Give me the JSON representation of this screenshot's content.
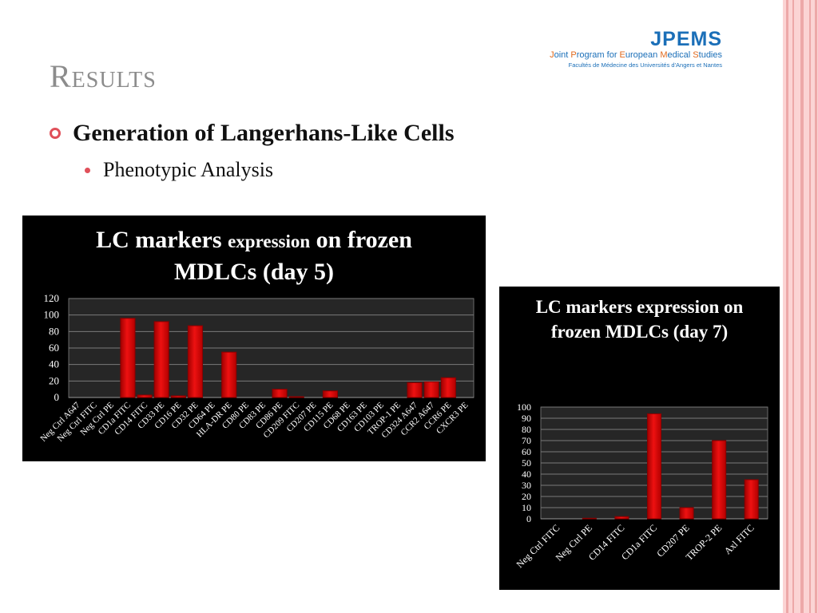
{
  "slide": {
    "title": "Results",
    "bullet1": "Generation of Langerhans-Like Cells",
    "bullet2": "Phenotypic Analysis"
  },
  "logo": {
    "main": "JPEMS",
    "subtitle": "Joint Program for European Medical Studies",
    "subtitle_parts": [
      "J",
      "oint ",
      "P",
      "rogram for ",
      "E",
      "uropean ",
      "M",
      "edical ",
      "S",
      "tudies"
    ],
    "subtitle2": "Facultés de Médecine des Universités d'Angers et Nantes"
  },
  "colors": {
    "bar": "#ee1111",
    "bar_edge": "#8a0000",
    "plot_bg": "#262626",
    "panel_bg": "#000000",
    "title_gray": "#8c8c8c",
    "bullet": "#e0505a",
    "logo_blue": "#1b6fb8",
    "logo_orange": "#e06a1e"
  },
  "chart_data": [
    {
      "type": "bar",
      "title_main": "LC markers ",
      "title_small": "expression",
      "title_rest": " on frozen MDLCs (day 5)",
      "categories": [
        "Neg Ctrl A647",
        "Neg Ctrl FITC",
        "Neg Ctrl PE",
        "CD1a FITC",
        "CD14 FITC",
        "CD33 PE",
        "CD16 PE",
        "CD32 PE",
        "CD64 PE",
        "HLA-DR PE",
        "CD80 PE",
        "CD83 PE",
        "CD86 PE",
        "CD209 FITC",
        "CD207 PE",
        "CD115 PE",
        "CD68 PE",
        "CD163 PE",
        "CD103 PE",
        "TROP-1 PE",
        "CD324 A647",
        "CCR2 A647",
        "CCR6 PE",
        "CXCR3 PE"
      ],
      "values": [
        0,
        0,
        0,
        96,
        3,
        92,
        2,
        87,
        0,
        55,
        0,
        0,
        10,
        1,
        0,
        8,
        0,
        0,
        0,
        0,
        18,
        19,
        24,
        0
      ],
      "ylim": [
        0,
        120
      ],
      "yticks": [
        0,
        20,
        40,
        60,
        80,
        100,
        120
      ],
      "grid": true
    },
    {
      "type": "bar",
      "title": "LC markers expression on frozen MDLCs (day 7)",
      "categories": [
        "Neg Ctrl FITC",
        "Neg Ctrl PE",
        "CD14 FITC",
        "CD1a FITC",
        "CD207 PE",
        "TROP-2 PE",
        "Axl FITC"
      ],
      "values": [
        0,
        0.5,
        2,
        94,
        10,
        70,
        35
      ],
      "ylim": [
        0,
        100
      ],
      "yticks": [
        0,
        10,
        20,
        30,
        40,
        50,
        60,
        70,
        80,
        90,
        100
      ],
      "grid": true
    }
  ]
}
